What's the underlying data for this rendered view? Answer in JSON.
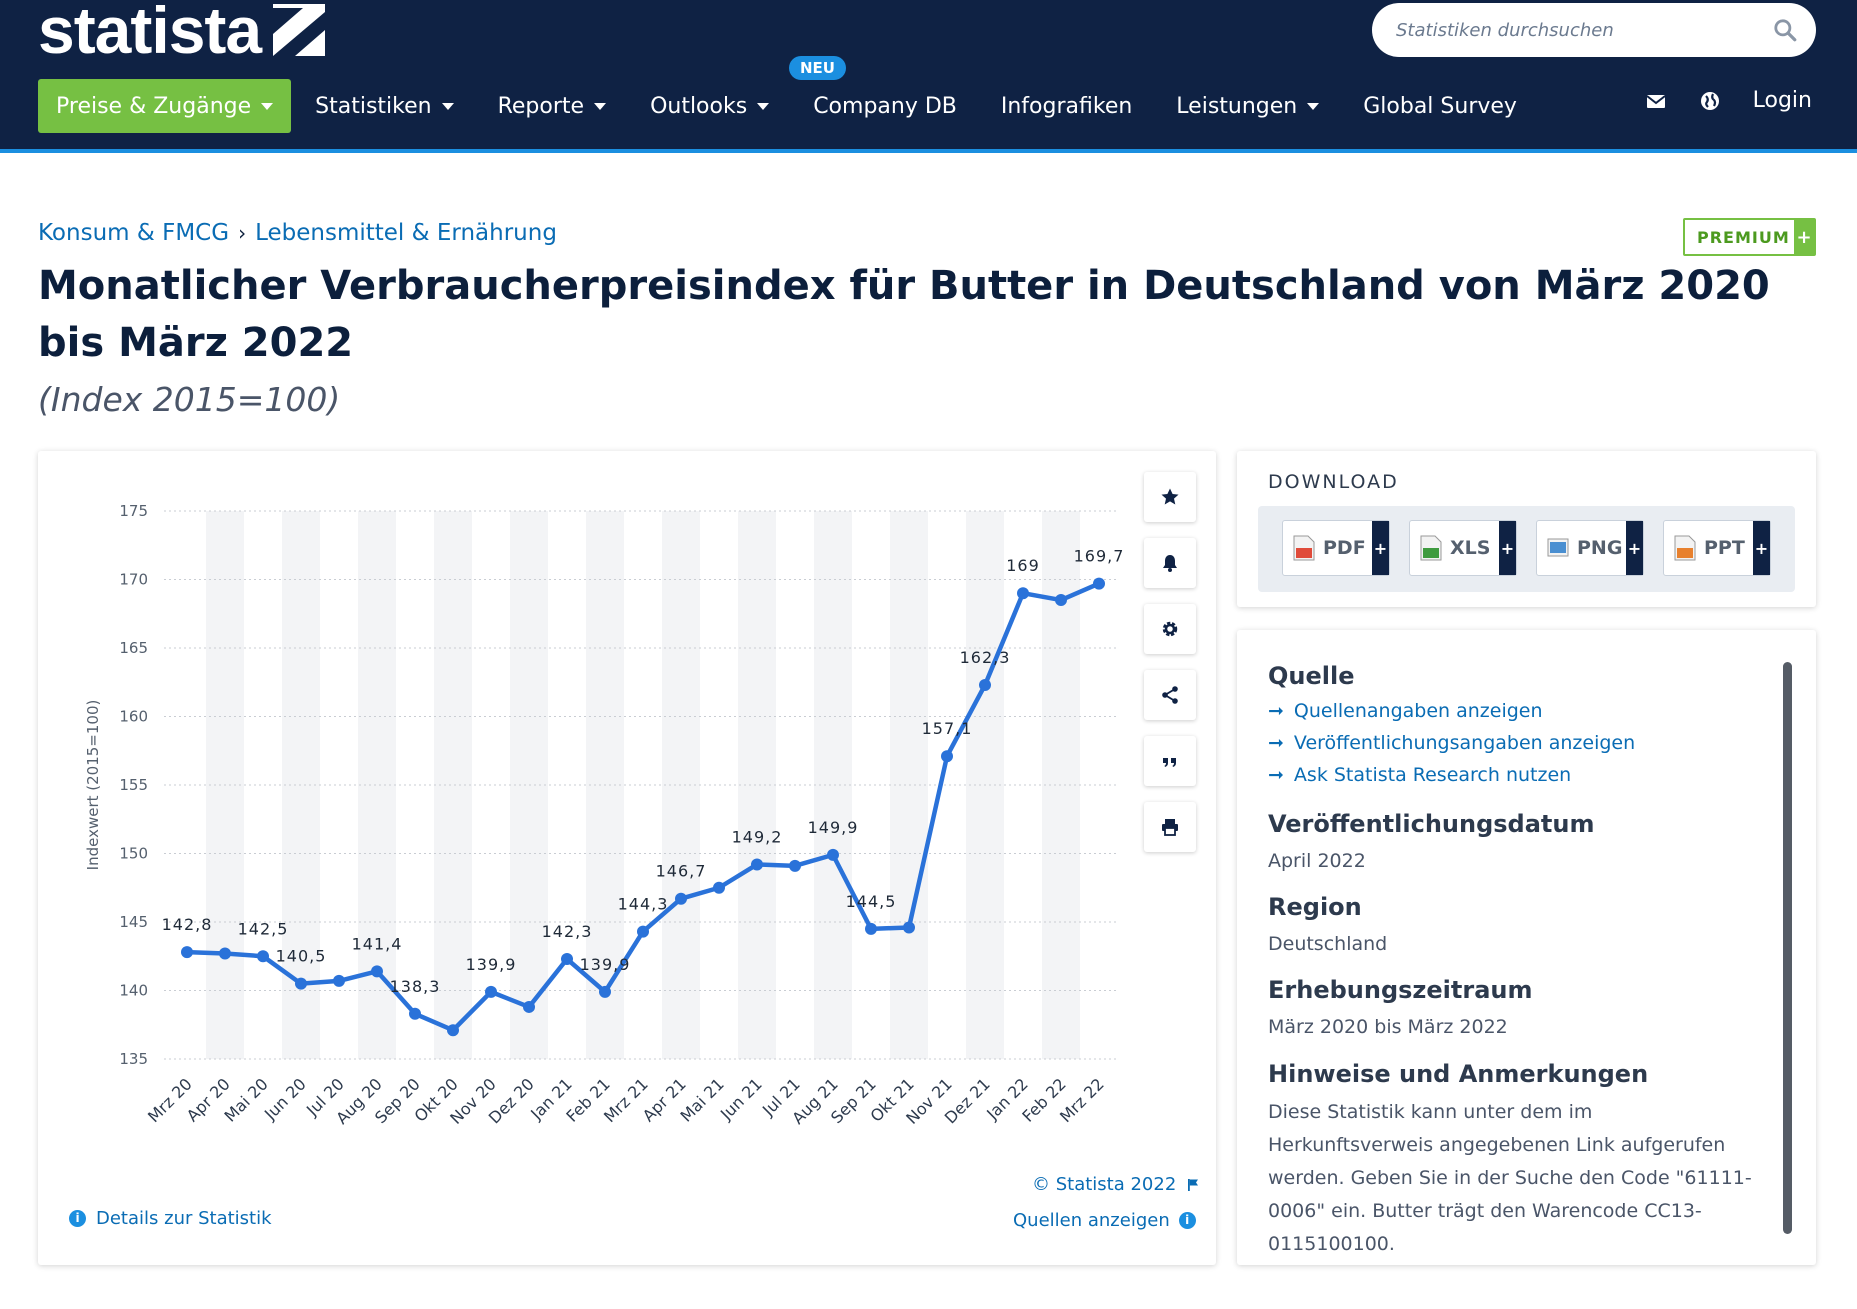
{
  "header": {
    "logo": "statista",
    "search_placeholder": "Statistiken durchsuchen",
    "nav": [
      {
        "label": "Preise & Zugänge",
        "caret": true
      },
      {
        "label": "Statistiken",
        "caret": true
      },
      {
        "label": "Reporte",
        "caret": true
      },
      {
        "label": "Outlooks",
        "caret": true
      },
      {
        "label": "Company DB",
        "caret": false
      },
      {
        "label": "Infografiken",
        "caret": false
      },
      {
        "label": "Leistungen",
        "caret": true
      },
      {
        "label": "Global Survey",
        "caret": false
      }
    ],
    "neu_badge": "NEU",
    "login": "Login",
    "icons": [
      "mail-icon",
      "globe-icon",
      "search-icon"
    ],
    "colors": {
      "bg": "#0f2244",
      "accent": "#1b8fe0",
      "primary_button": "#76c043"
    }
  },
  "breadcrumb": {
    "item1": "Konsum & FMCG",
    "separator": "›",
    "item2": "Lebensmittel & Ernährung"
  },
  "premium_badge": {
    "label": "PREMIUM",
    "plus": "+"
  },
  "page": {
    "title": "Monatlicher Verbraucherpreisindex für Butter in Deutschland von März 2020 bis März 2022",
    "subtitle": "(Index 2015=100)"
  },
  "chart_data": {
    "type": "line",
    "categories": [
      "Mrz 20",
      "Apr 20",
      "Mai 20",
      "Jun 20",
      "Jul 20",
      "Aug 20",
      "Sep 20",
      "Okt 20",
      "Nov 20",
      "Dez 20",
      "Jan 21",
      "Feb 21",
      "Mrz 21",
      "Apr 21",
      "Mai 21",
      "Jun 21",
      "Jul 21",
      "Aug 21",
      "Sep 21",
      "Okt 21",
      "Nov 21",
      "Dez 21",
      "Jan 22",
      "Feb 22",
      "Mrz 22"
    ],
    "values": [
      142.8,
      142.7,
      142.5,
      140.5,
      140.7,
      141.4,
      138.3,
      137.1,
      139.9,
      138.8,
      142.3,
      139.9,
      144.3,
      146.7,
      147.5,
      149.2,
      149.1,
      149.9,
      144.5,
      144.6,
      157.1,
      162.3,
      169.0,
      168.5,
      169.7
    ],
    "data_labels": [
      {
        "index": 0,
        "text": "142,8"
      },
      {
        "index": 2,
        "text": "142,5"
      },
      {
        "index": 3,
        "text": "140,5"
      },
      {
        "index": 5,
        "text": "141,4"
      },
      {
        "index": 6,
        "text": "138,3"
      },
      {
        "index": 8,
        "text": "139,9"
      },
      {
        "index": 10,
        "text": "142,3"
      },
      {
        "index": 11,
        "text": "139,9"
      },
      {
        "index": 12,
        "text": "144,3"
      },
      {
        "index": 13,
        "text": "146,7"
      },
      {
        "index": 15,
        "text": "149,2"
      },
      {
        "index": 17,
        "text": "149,9"
      },
      {
        "index": 18,
        "text": "144,5"
      },
      {
        "index": 20,
        "text": "157,1"
      },
      {
        "index": 21,
        "text": "162,3"
      },
      {
        "index": 22,
        "text": "169"
      },
      {
        "index": 24,
        "text": "169,7"
      }
    ],
    "ylabel": "Indexwert (2015=100)",
    "ylim": [
      135,
      175
    ],
    "yticks": [
      135,
      140,
      145,
      150,
      155,
      160,
      165,
      170,
      175
    ],
    "grid": true,
    "alternating_column_shading": true,
    "line_color": "#2a72d9"
  },
  "chart_footer": {
    "copyright": "© Statista 2022",
    "sources_link": "Quellen anzeigen",
    "details_link": "Details zur Statistik"
  },
  "toolbar_icons": [
    "star-icon",
    "bell-icon",
    "gear-icon",
    "share-icon",
    "quote-icon",
    "print-icon"
  ],
  "download": {
    "title": "DOWNLOAD",
    "buttons": [
      {
        "label": "PDF",
        "icon": "pdf-file-icon",
        "color": "#e04b3a"
      },
      {
        "label": "XLS",
        "icon": "xls-file-icon",
        "color": "#3f9b3f"
      },
      {
        "label": "PNG",
        "icon": "png-file-icon",
        "color": "#4a8fd1"
      },
      {
        "label": "PPT",
        "icon": "ppt-file-icon",
        "color": "#e8812e"
      }
    ],
    "plus": "+"
  },
  "info": {
    "source_heading": "Quelle",
    "source_links": [
      "Quellenangaben anzeigen",
      "Veröffentlichungsangaben anzeigen",
      "Ask Statista Research nutzen"
    ],
    "pub_date_heading": "Veröffentlichungsdatum",
    "pub_date": "April 2022",
    "region_heading": "Region",
    "region": "Deutschland",
    "survey_heading": "Erhebungszeitraum",
    "survey_period": "März 2020 bis März 2022",
    "notes_heading": "Hinweise und Anmerkungen",
    "notes": "Diese Statistik kann unter dem im Herkunftsverweis angegebenen Link aufgerufen werden. Geben Sie in der Suche den Code \"61111-0006\" ein. Butter trägt den Warencode CC13-0115100100."
  }
}
